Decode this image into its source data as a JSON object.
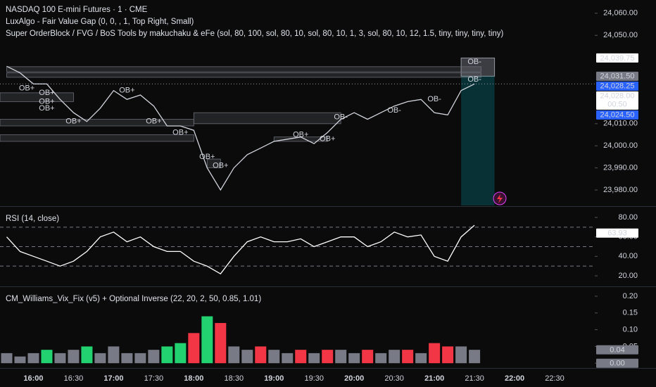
{
  "header": {
    "title": "NASDAQ 100 E-mini Futures · 1 · CME",
    "indicators": [
      "LuxAlgo - Fair Value Gap (0, 0, , 1, Top Right, Small)",
      "Super OrderBlock / FVG / BoS Tools by makuchaku & eFe (sol, 80, 100, sol, 80, 10, sol, 80, 10, 1, 3, sol, 80, 10, 12, 1.5, tiny, tiny, tiny, tiny)"
    ]
  },
  "time_axis": {
    "xlim": [
      "15:35",
      "23:00"
    ],
    "xticks": [
      "16:00",
      "16:30",
      "17:00",
      "17:30",
      "18:00",
      "18:30",
      "19:00",
      "19:30",
      "20:00",
      "20:30",
      "21:00",
      "21:30",
      "22:00",
      "22:30"
    ],
    "x": [
      "15:40",
      "15:50",
      "16:00",
      "16:10",
      "16:20",
      "16:30",
      "16:40",
      "16:50",
      "17:00",
      "17:10",
      "17:20",
      "17:30",
      "17:40",
      "17:50",
      "18:00",
      "18:10",
      "18:20",
      "18:30",
      "18:40",
      "18:50",
      "19:00",
      "19:10",
      "19:20",
      "19:30",
      "19:40",
      "19:50",
      "20:00",
      "20:10",
      "20:20",
      "20:30",
      "20:40",
      "20:50",
      "21:00",
      "21:10",
      "21:20",
      "21:30"
    ]
  },
  "chart_data": [
    {
      "type": "line",
      "ylim": [
        23973,
        24066
      ],
      "yticks": [
        {
          "value": 24060,
          "label": "24,060.00"
        },
        {
          "value": 24050,
          "label": "24,050.00"
        },
        {
          "value": 24010,
          "label": "24,010.00"
        },
        {
          "value": 24000,
          "label": "24,000.00"
        },
        {
          "value": 23990,
          "label": "23,990.00"
        },
        {
          "value": 23980,
          "label": "23,980.00"
        }
      ],
      "series": [
        {
          "color": "#d1d4dc",
          "values": [
            24036,
            24033,
            24028,
            24028,
            24021,
            24015,
            24011,
            24017,
            24025,
            24021,
            24023,
            24018,
            24009,
            24009,
            24007,
            23990,
            23980,
            23990,
            23996,
            23999,
            24002,
            24003,
            24004,
            24001,
            24006,
            24012,
            24015,
            24012,
            24015,
            24018,
            24020,
            24021,
            24015,
            24014,
            24025,
            24028
          ]
        }
      ],
      "zones": [
        {
          "x": [
            "15:40",
            "21:35"
          ],
          "y": [
            24033.5,
            24035.8
          ]
        },
        {
          "x": [
            "15:40",
            "21:35"
          ],
          "y": [
            24031,
            24033
          ]
        },
        {
          "x": [
            "15:35",
            "16:30"
          ],
          "y": [
            24020,
            24024
          ]
        },
        {
          "x": [
            "15:35",
            "18:00"
          ],
          "y": [
            24009,
            24012
          ]
        },
        {
          "x": [
            "15:35",
            "18:00"
          ],
          "y": [
            24002,
            24005
          ]
        },
        {
          "x": [
            "18:00",
            "19:50"
          ],
          "y": [
            24010,
            24015
          ]
        },
        {
          "x": [
            "18:10",
            "18:20"
          ],
          "y": [
            23990,
            23994
          ]
        },
        {
          "x": [
            "19:00",
            "19:40"
          ],
          "y": [
            24002,
            24004
          ]
        }
      ],
      "annotations": [
        {
          "x": "15:55",
          "y": 24026,
          "text": "OB+"
        },
        {
          "x": "16:10",
          "y": 24024,
          "text": "OB+"
        },
        {
          "x": "16:10",
          "y": 24020,
          "text": "OB+"
        },
        {
          "x": "16:10",
          "y": 24017,
          "text": "OB+"
        },
        {
          "x": "16:30",
          "y": 24011,
          "text": "OB+"
        },
        {
          "x": "17:10",
          "y": 24025,
          "text": "OB+"
        },
        {
          "x": "17:30",
          "y": 24011,
          "text": "OB+"
        },
        {
          "x": "17:50",
          "y": 24006,
          "text": "OB+"
        },
        {
          "x": "18:10",
          "y": 23995,
          "text": "OB+"
        },
        {
          "x": "18:20",
          "y": 23991,
          "text": "OB+"
        },
        {
          "x": "19:20",
          "y": 24005,
          "text": "OB+"
        },
        {
          "x": "19:40",
          "y": 24003,
          "text": "OB+"
        },
        {
          "x": "19:50",
          "y": 24013,
          "text": "OB-"
        },
        {
          "x": "20:30",
          "y": 24016,
          "text": "OB-"
        },
        {
          "x": "21:00",
          "y": 24021,
          "text": "OB-"
        },
        {
          "x": "21:30",
          "y": 24030,
          "text": "OB-"
        },
        {
          "x": "21:30",
          "y": 24038,
          "text": "OB-"
        }
      ],
      "position": {
        "x": [
          "21:20",
          "21:45"
        ]
      },
      "markers": [
        {
          "value": 24039.75,
          "label": "24,039.75",
          "color": "#ffffff"
        },
        {
          "value": 24031.5,
          "label": "24,031.50",
          "color": "#787b86"
        },
        {
          "value": 24028.25,
          "label": "24,028.25",
          "color": "#2962ff"
        },
        {
          "value": 24028,
          "label": "24,028.00",
          "color": "#ffffff",
          "countdown": "00:50"
        },
        {
          "value": 24024.5,
          "label": "24,024.50",
          "color": "#2962ff"
        }
      ]
    },
    {
      "type": "line",
      "title": "RSI (14, close)",
      "ylim": [
        10.6,
        89.4
      ],
      "yticks": [
        {
          "value": 80,
          "label": "80.00"
        },
        {
          "value": 60,
          "label": "60.00"
        },
        {
          "value": 40,
          "label": "40.00"
        },
        {
          "value": 20,
          "label": "20.00"
        }
      ],
      "bands": [
        70,
        50,
        30
      ],
      "series": [
        {
          "color": "#ffffff",
          "values": [
            60,
            45,
            40,
            35,
            30,
            35,
            45,
            60,
            65,
            55,
            60,
            50,
            45,
            45,
            35,
            30,
            22,
            40,
            55,
            60,
            55,
            55,
            58,
            50,
            55,
            60,
            60,
            50,
            55,
            65,
            60,
            62,
            40,
            35,
            60,
            72
          ]
        }
      ],
      "markers": [
        {
          "value": 63.93,
          "label": "63.93",
          "color": "#ffffff"
        }
      ]
    },
    {
      "type": "bar",
      "title": "CM_Williams_Vix_Fix (v5) + Optional Inverse (22, 20, 2, 50, 0.85, 1.01)",
      "ylim": [
        -0.008,
        0.223
      ],
      "yticks": [
        {
          "value": 0.2,
          "label": "0.20"
        },
        {
          "value": 0.15,
          "label": "0.15"
        },
        {
          "value": 0.1,
          "label": "0.10"
        },
        {
          "value": 0.05,
          "label": "0.05"
        },
        {
          "value": 0,
          "label": "0.00"
        }
      ],
      "series": [
        {
          "values": [
            0.03,
            0.02,
            0.03,
            0.04,
            0.03,
            0.04,
            0.05,
            0.03,
            0.05,
            0.03,
            0.03,
            0.04,
            0.05,
            0.06,
            0.09,
            0.14,
            0.12,
            0.05,
            0.04,
            0.05,
            0.04,
            0.03,
            0.04,
            0.03,
            0.04,
            0.04,
            0.03,
            0.04,
            0.03,
            0.04,
            0.04,
            0.03,
            0.06,
            0.05,
            0.05,
            0.04
          ],
          "colors": [
            "#787b86",
            "#787b86",
            "#787b86",
            "#22d16f",
            "#787b86",
            "#787b86",
            "#22d16f",
            "#787b86",
            "#787b86",
            "#787b86",
            "#787b86",
            "#787b86",
            "#22d16f",
            "#22d16f",
            "#f23645",
            "#22d16f",
            "#f23645",
            "#787b86",
            "#787b86",
            "#f23645",
            "#787b86",
            "#787b86",
            "#f23645",
            "#787b86",
            "#f23645",
            "#787b86",
            "#787b86",
            "#f23645",
            "#787b86",
            "#787b86",
            "#f23645",
            "#787b86",
            "#f23645",
            "#f23645",
            "#787b86",
            "#787b86"
          ]
        }
      ],
      "markers": [
        {
          "value": 0.04,
          "label": "0.04",
          "color": "#787b86"
        },
        {
          "value": 0,
          "label": "0.00",
          "color": "#787b86"
        }
      ]
    }
  ]
}
